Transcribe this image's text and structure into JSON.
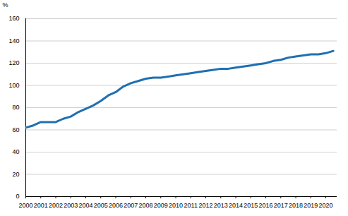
{
  "chart_data": {
    "type": "line",
    "x": [
      2000,
      2000.5,
      2001,
      2001.5,
      2002,
      2002.5,
      2003,
      2003.5,
      2004,
      2004.5,
      2005,
      2005.5,
      2006,
      2006.5,
      2007,
      2007.5,
      2008,
      2008.5,
      2009,
      2009.5,
      2010,
      2010.5,
      2011,
      2011.5,
      2012,
      2012.5,
      2013,
      2013.5,
      2014,
      2014.5,
      2015,
      2015.5,
      2016,
      2016.5,
      2017,
      2017.5,
      2018,
      2018.5,
      2019,
      2019.5,
      2020,
      2020.5
    ],
    "values": [
      62,
      64,
      67,
      67,
      67,
      70,
      72,
      76,
      79,
      82,
      86,
      91,
      94,
      99,
      102,
      104,
      106,
      107,
      107,
      108,
      109,
      110,
      111,
      112,
      113,
      114,
      115,
      115,
      116,
      117,
      118,
      119,
      120,
      122,
      123,
      125,
      126,
      127,
      128,
      128,
      129,
      131
    ],
    "color": "#1f6fb2",
    "y_label": "%",
    "xlim": [
      2000,
      2020.75
    ],
    "xticks": [
      2000,
      2001,
      2002,
      2003,
      2004,
      2005,
      2006,
      2007,
      2008,
      2009,
      2010,
      2011,
      2012,
      2013,
      2014,
      2015,
      2016,
      2017,
      2018,
      2019,
      2020
    ],
    "ylim": [
      0,
      160
    ],
    "yticks": [
      0,
      20,
      40,
      60,
      80,
      100,
      120,
      140,
      160
    ],
    "grid": true
  }
}
